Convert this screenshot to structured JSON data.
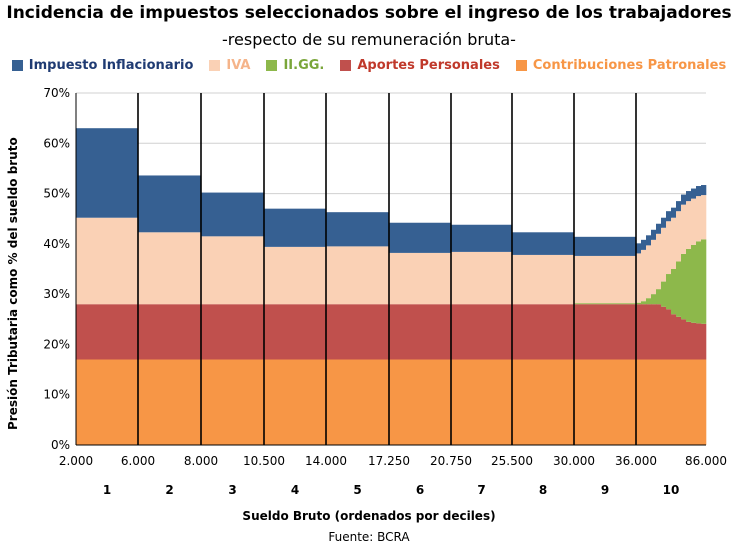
{
  "chart_data": {
    "type": "area",
    "title": "Incidencia de impuestos seleccionados sobre el ingreso de los trabajadores",
    "subtitle": "-respecto de su remuneración bruta-",
    "ylabel": "Presión Tributaria como % del sueldo bruto",
    "xlabel": "Sueldo Bruto (ordenados por deciles)",
    "source": "Fuente: BCRA",
    "ylim": [
      0,
      70
    ],
    "yticks": [
      "0%",
      "10%",
      "20%",
      "30%",
      "40%",
      "50%",
      "60%",
      "70%"
    ],
    "xticks": [
      "2.000",
      "6.000",
      "8.000",
      "10.500",
      "14.000",
      "17.250",
      "20.750",
      "25.500",
      "30.000",
      "36.000",
      "86.000"
    ],
    "deciles": [
      "1",
      "2",
      "3",
      "4",
      "5",
      "6",
      "7",
      "8",
      "9",
      "10"
    ],
    "legend_position": "top",
    "grid": true,
    "series": [
      {
        "name": "Impuesto Inflacionario",
        "color": "#366092"
      },
      {
        "name": "IVA",
        "color": "#FAD1B5"
      },
      {
        "name": "II.GG.",
        "color": "#8DB84B"
      },
      {
        "name": "Aportes Personales",
        "color": "#C0504D"
      },
      {
        "name": "Contribuciones Patronales",
        "color": "#F79646"
      }
    ],
    "decile_steps": [
      {
        "decile": "1",
        "contribuciones": 17,
        "aportes": 11,
        "iigg": 0,
        "iva": 17.2,
        "inflacionario": 17.8
      },
      {
        "decile": "2",
        "contribuciones": 17,
        "aportes": 11,
        "iigg": 0,
        "iva": 14.3,
        "inflacionario": 11.3
      },
      {
        "decile": "3",
        "contribuciones": 17,
        "aportes": 11,
        "iigg": 0,
        "iva": 13.5,
        "inflacionario": 8.7
      },
      {
        "decile": "4",
        "contribuciones": 17,
        "aportes": 11,
        "iigg": 0,
        "iva": 11.4,
        "inflacionario": 7.6
      },
      {
        "decile": "5",
        "contribuciones": 17,
        "aportes": 11,
        "iigg": 0,
        "iva": 11.5,
        "inflacionario": 6.8
      },
      {
        "decile": "6",
        "contribuciones": 17,
        "aportes": 11,
        "iigg": 0,
        "iva": 10.2,
        "inflacionario": 6.0
      },
      {
        "decile": "7",
        "contribuciones": 17,
        "aportes": 11,
        "iigg": 0,
        "iva": 10.4,
        "inflacionario": 5.4
      },
      {
        "decile": "8",
        "contribuciones": 17,
        "aportes": 11,
        "iigg": 0,
        "iva": 9.8,
        "inflacionario": 4.5
      },
      {
        "decile": "9",
        "contribuciones": 17,
        "aportes": 11,
        "iigg": 0.2,
        "iva": 9.4,
        "inflacionario": 3.8
      }
    ],
    "decile10_steps": [
      {
        "contribuciones": 17,
        "aportes": 11,
        "iigg": 0.3,
        "iva": 9.8,
        "inflacionario": 2.0
      },
      {
        "contribuciones": 17,
        "aportes": 11,
        "iigg": 0.6,
        "iva": 10.2,
        "inflacionario": 2.0
      },
      {
        "contribuciones": 17,
        "aportes": 11,
        "iigg": 1.2,
        "iva": 10.5,
        "inflacionario": 2.0
      },
      {
        "contribuciones": 17,
        "aportes": 11,
        "iigg": 2.0,
        "iva": 10.8,
        "inflacionario": 2.0
      },
      {
        "contribuciones": 17,
        "aportes": 11,
        "iigg": 3.0,
        "iva": 11.0,
        "inflacionario": 2.0
      },
      {
        "contribuciones": 17,
        "aportes": 10.5,
        "iigg": 5.0,
        "iva": 10.7,
        "inflacionario": 2.0
      },
      {
        "contribuciones": 17,
        "aportes": 10.0,
        "iigg": 7.0,
        "iva": 10.5,
        "inflacionario": 2.0
      },
      {
        "contribuciones": 17,
        "aportes": 9.0,
        "iigg": 9.0,
        "iva": 10.2,
        "inflacionario": 2.0
      },
      {
        "contribuciones": 17,
        "aportes": 8.5,
        "iigg": 11.0,
        "iva": 10.0,
        "inflacionario": 2.0
      },
      {
        "contribuciones": 17,
        "aportes": 8.0,
        "iigg": 13.0,
        "iva": 9.8,
        "inflacionario": 2.0
      },
      {
        "contribuciones": 17,
        "aportes": 7.5,
        "iigg": 14.5,
        "iva": 9.5,
        "inflacionario": 2.0
      },
      {
        "contribuciones": 17,
        "aportes": 7.3,
        "iigg": 15.5,
        "iva": 9.2,
        "inflacionario": 2.0
      },
      {
        "contribuciones": 17,
        "aportes": 7.2,
        "iigg": 16.3,
        "iva": 9.0,
        "inflacionario": 2.0
      },
      {
        "contribuciones": 17,
        "aportes": 7.1,
        "iigg": 16.8,
        "iva": 8.8,
        "inflacionario": 2.0
      }
    ]
  }
}
